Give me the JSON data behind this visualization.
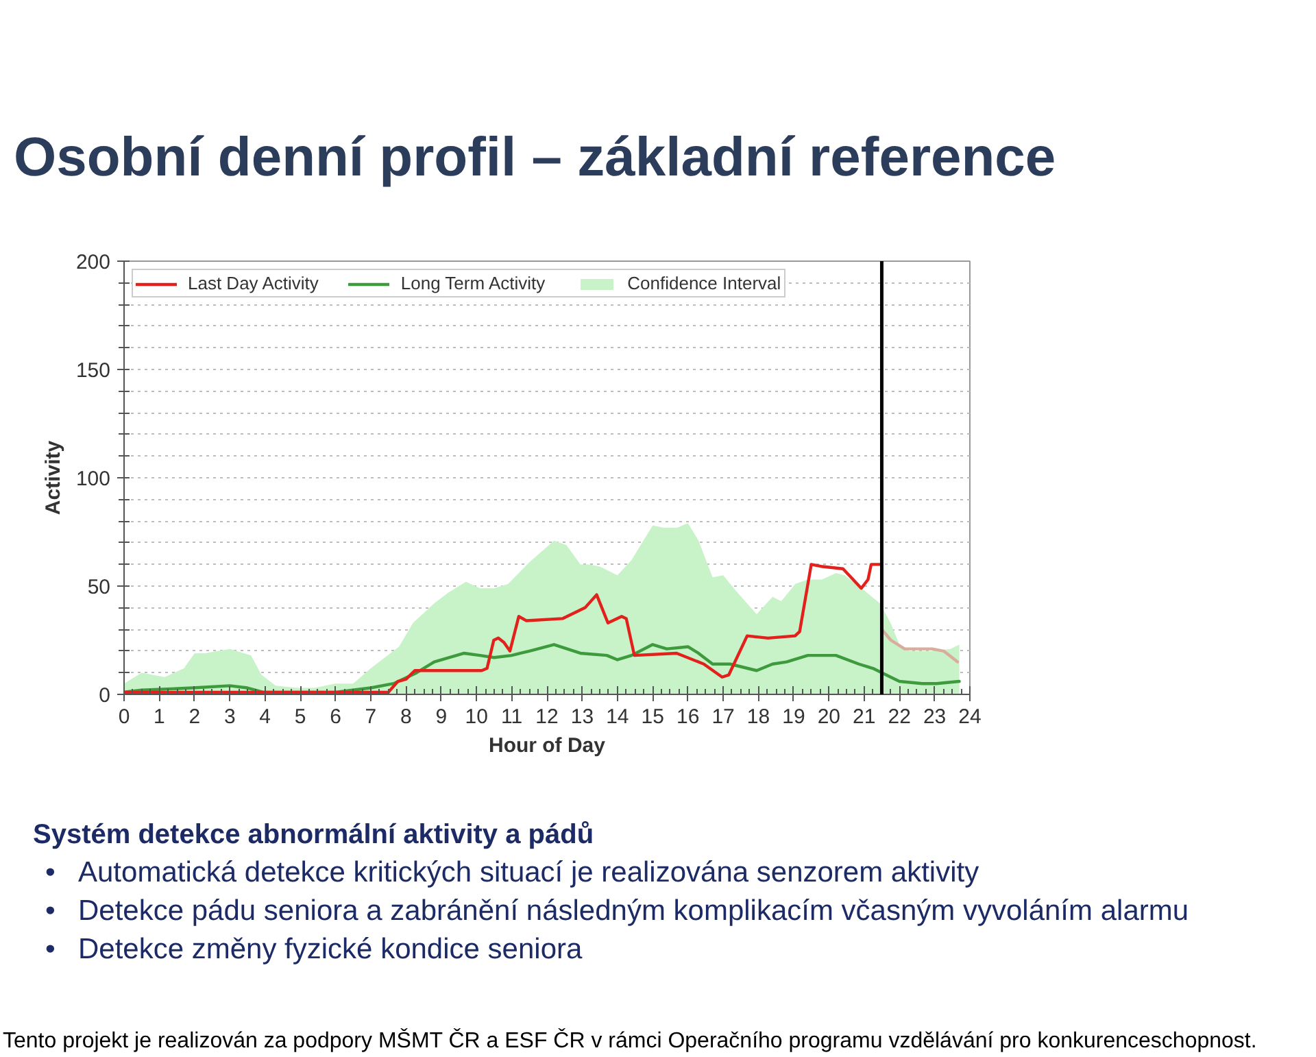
{
  "chart_data": {
    "type": "line",
    "title": "Osobní denní profil – základní reference",
    "xlabel": "Hour of Day",
    "ylabel": "Activity",
    "xlim": [
      0,
      24
    ],
    "ylim": [
      0,
      200
    ],
    "xticks": [
      0,
      {
        "value": 0.25,
        "label": null
      },
      {
        "value": 0.5,
        "label": null
      },
      {
        "value": 0.75,
        "label": null
      },
      1,
      {
        "value": 1.25,
        "label": null
      },
      {
        "value": 1.5,
        "label": null
      },
      {
        "value": 1.75,
        "label": null
      },
      2,
      {
        "value": 2.25,
        "label": null
      },
      {
        "value": 2.5,
        "label": null
      },
      {
        "value": 2.75,
        "label": null
      },
      3,
      {
        "value": 3.25,
        "label": null
      },
      {
        "value": 3.5,
        "label": null
      },
      {
        "value": 3.75,
        "label": null
      },
      4,
      {
        "value": 4.25,
        "label": null
      },
      {
        "value": 4.5,
        "label": null
      },
      {
        "value": 4.75,
        "label": null
      },
      5,
      {
        "value": 5.25,
        "label": null
      },
      {
        "value": 5.5,
        "label": null
      },
      {
        "value": 5.75,
        "label": null
      },
      6,
      {
        "value": 6.25,
        "label": null
      },
      {
        "value": 6.5,
        "label": null
      },
      {
        "value": 6.75,
        "label": null
      },
      7,
      {
        "value": 7.25,
        "label": null
      },
      {
        "value": 7.5,
        "label": null
      },
      {
        "value": 7.75,
        "label": null
      },
      8,
      {
        "value": 8.25,
        "label": null
      },
      {
        "value": 8.5,
        "label": null
      },
      {
        "value": 8.75,
        "label": null
      },
      9,
      {
        "value": 9.25,
        "label": null
      },
      {
        "value": 9.5,
        "label": null
      },
      {
        "value": 9.75,
        "label": null
      },
      10,
      {
        "value": 10.25,
        "label": null
      },
      {
        "value": 10.5,
        "label": null
      },
      {
        "value": 10.75,
        "label": null
      },
      11,
      {
        "value": 11.25,
        "label": null
      },
      {
        "value": 11.5,
        "label": null
      },
      {
        "value": 11.75,
        "label": null
      },
      12,
      {
        "value": 12.25,
        "label": null
      },
      {
        "value": 12.5,
        "label": null
      },
      {
        "value": 12.75,
        "label": null
      },
      13,
      {
        "value": 13.25,
        "label": null
      },
      {
        "value": 13.5,
        "label": null
      },
      {
        "value": 13.75,
        "label": null
      },
      14,
      {
        "value": 14.25,
        "label": null
      },
      {
        "value": 14.5,
        "label": null
      },
      {
        "value": 14.75,
        "label": null
      },
      15,
      {
        "value": 15.25,
        "label": null
      },
      {
        "value": 15.5,
        "label": null
      },
      {
        "value": 15.75,
        "label": null
      },
      16,
      {
        "value": 16.25,
        "label": null
      },
      {
        "value": 16.5,
        "label": null
      },
      {
        "value": 16.75,
        "label": null
      },
      17,
      {
        "value": 17.25,
        "label": null
      },
      {
        "value": 17.5,
        "label": null
      },
      {
        "value": 17.75,
        "label": null
      },
      18,
      {
        "value": 18.25,
        "label": null
      },
      {
        "value": 18.5,
        "label": null
      },
      {
        "value": 18.75,
        "label": null
      },
      19,
      {
        "value": 19.25,
        "label": null
      },
      {
        "value": 19.5,
        "label": null
      },
      {
        "value": 19.75,
        "label": null
      },
      20,
      {
        "value": 20.25,
        "label": null
      },
      {
        "value": 20.5,
        "label": null
      },
      {
        "value": 20.75,
        "label": null
      },
      21,
      {
        "value": 21.25,
        "label": null
      },
      {
        "value": 21.5,
        "label": null
      },
      {
        "value": 21.75,
        "label": null
      },
      22,
      {
        "value": 22.25,
        "label": null
      },
      {
        "value": 22.5,
        "label": null
      },
      {
        "value": 22.75,
        "label": null
      },
      23,
      {
        "value": 23.25,
        "label": null
      },
      {
        "value": 23.5,
        "label": null
      },
      {
        "value": 23.75,
        "label": null
      },
      24
    ],
    "yticks": [
      0,
      {
        "value": 10,
        "label": null
      },
      {
        "value": 20,
        "label": null
      },
      {
        "value": 30,
        "label": null
      },
      {
        "value": 40,
        "label": null
      },
      50,
      {
        "value": 60,
        "label": null
      },
      {
        "value": 70,
        "label": null
      },
      {
        "value": 80,
        "label": null
      },
      {
        "value": 90,
        "label": null
      },
      100,
      {
        "value": 110,
        "label": null
      },
      {
        "value": 120,
        "label": null
      },
      {
        "value": 130,
        "label": null
      },
      {
        "value": 140,
        "label": null
      },
      150,
      {
        "value": 160,
        "label": null
      },
      {
        "value": 170,
        "label": null
      },
      {
        "value": 180,
        "label": null
      },
      {
        "value": 190,
        "label": null
      },
      200
    ],
    "grid": "y",
    "legend": "top left",
    "series": [
      {
        "name": "Last Day Activity",
        "color": "#e3211c",
        "x": [
          0,
          7.5,
          7.77,
          8.0,
          8.25,
          10.15,
          10.3,
          10.49,
          10.62,
          10.78,
          10.95,
          11.2,
          11.42,
          12.44,
          13.08,
          13.41,
          13.73,
          14.12,
          14.25,
          14.48,
          15.68,
          16.45,
          16.71,
          16.97,
          17.16,
          17.68,
          18.27,
          19.04,
          19.17,
          19.5,
          19.82,
          20.4,
          20.92,
          21.11,
          21.2,
          21.48
        ],
        "values": [
          1,
          1,
          6,
          7,
          11,
          11,
          12,
          25,
          26,
          24,
          20,
          36,
          34,
          35,
          40,
          46,
          33,
          36,
          35,
          18,
          19,
          14,
          11,
          8,
          9,
          27,
          26,
          27,
          29,
          60,
          59,
          58,
          49,
          53,
          60,
          60
        ]
      },
      {
        "color": "#d8ad9c",
        "x": [
          21.5,
          21.76,
          22.15,
          22.93,
          23.26,
          23.65
        ],
        "values": [
          30,
          25,
          21,
          21,
          20,
          15
        ]
      },
      {
        "name": "Long Term Activity",
        "color": "#3d9a3d",
        "x": [
          0,
          0.5,
          1.95,
          3.0,
          3.5,
          3.95,
          6.0,
          7.0,
          7.65,
          8.3,
          8.8,
          9.65,
          10.1,
          10.5,
          11.0,
          11.5,
          12.2,
          12.95,
          13.7,
          14.0,
          14.4,
          15.0,
          15.4,
          16.0,
          16.3,
          16.7,
          17.2,
          17.95,
          18.4,
          18.8,
          19.4,
          20.2,
          20.85,
          21.25,
          21.75,
          22.0,
          22.65,
          23.05,
          23.7
        ],
        "values": [
          1,
          2,
          3,
          4,
          3,
          1,
          1,
          3,
          5,
          10,
          15,
          19,
          18,
          17,
          18,
          20,
          23,
          19,
          18,
          16,
          18,
          23,
          21,
          22,
          19,
          14,
          14,
          11,
          14,
          15,
          18,
          18,
          14,
          12,
          8,
          6,
          5,
          5,
          6
        ]
      },
      {
        "name": "Confidence Interval",
        "type": "area",
        "color": "#c8f2c8",
        "x": [
          0,
          0.5,
          1.15,
          1.7,
          2.0,
          2.3,
          3.0,
          3.4,
          3.6,
          3.9,
          4.3,
          4.9,
          5.4,
          6.0,
          6.5,
          7.0,
          7.4,
          7.8,
          8.2,
          8.8,
          9.2,
          9.7,
          10.1,
          10.5,
          10.9,
          11.5,
          12.2,
          12.55,
          12.95,
          13.2,
          13.5,
          14.0,
          14.4,
          15.0,
          15.3,
          15.7,
          16.0,
          16.3,
          16.7,
          17.0,
          17.35,
          17.95,
          18.4,
          18.65,
          19.05,
          19.4,
          19.8,
          20.2,
          20.45,
          20.85,
          21.45,
          21.75,
          22.0,
          22.3,
          22.9,
          23.45,
          23.7
        ],
        "values": [
          5,
          10,
          8,
          12,
          19,
          19,
          21,
          19,
          18,
          9,
          4,
          3,
          3,
          5,
          5,
          12,
          17,
          22,
          33,
          42,
          47,
          52,
          49,
          49,
          51,
          61,
          71,
          69,
          60,
          60,
          59,
          55,
          62,
          78,
          77,
          77,
          79,
          71,
          54,
          55,
          48,
          37,
          45,
          43,
          51,
          53,
          53,
          56,
          55,
          50,
          42,
          33,
          23,
          20,
          20,
          21,
          23
        ]
      }
    ],
    "ref_lines": [
      {
        "axis": "x",
        "value": 21.5,
        "color": "#000000"
      }
    ],
    "annotations": [
      "Systém detekce abnormální aktivity a pádů",
      "•\tAutomatická detekce kritických situací je realizována senzorem aktivity",
      "•\tDetekce pádu seniora a zabránění následným komplikacím včasným vyvoláním alarmu",
      "•\tDetekce změny fyzické kondice seniora",
      "Tento projekt je realizován za podpory MŠMT ČR a ESF ČR v rámci Operačního programu vzdělávání pro konkurenceschopnost."
    ]
  }
}
